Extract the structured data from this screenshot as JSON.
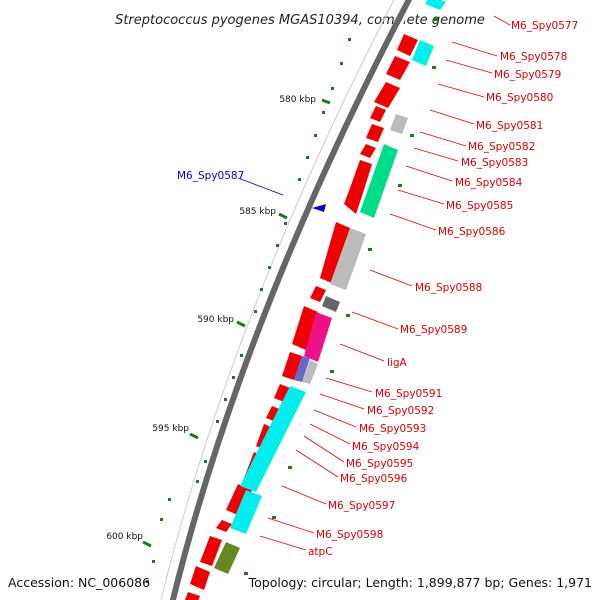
{
  "title": "Streptococcus pyogenes MGAS10394, complete genome",
  "footer": {
    "accession": "Accession: NC_006086",
    "topology": "Topology: circular; Length: 1,899,877 bp; Genes: 1,971"
  },
  "colors": {
    "backbone": "#999999",
    "forward_gene": "#ee0000",
    "annotation_red": "#ee0000",
    "annotation_blue": "#0000cc",
    "tick_green": "#227722",
    "cog_cyan": "#00eeee",
    "cog_green": "#00dd88",
    "cog_lightgray": "#bbbbbb",
    "cog_darkgray": "#666666",
    "cog_magenta": "#ee1188",
    "cog_purple": "#6666cc",
    "cog_olive": "#668822"
  },
  "scale_labels": [
    "580 kbp",
    "585 kbp",
    "590 kbp",
    "595 kbp",
    "600 kbp"
  ],
  "gene_labels": [
    {
      "text": "M6_Spy0577",
      "color": "red"
    },
    {
      "text": "M6_Spy0578",
      "color": "red"
    },
    {
      "text": "M6_Spy0579",
      "color": "red"
    },
    {
      "text": "M6_Spy0580",
      "color": "red"
    },
    {
      "text": "M6_Spy0581",
      "color": "red"
    },
    {
      "text": "M6_Spy0582",
      "color": "red"
    },
    {
      "text": "M6_Spy0583",
      "color": "red"
    },
    {
      "text": "M6_Spy0584",
      "color": "red"
    },
    {
      "text": "M6_Spy0585",
      "color": "red"
    },
    {
      "text": "M6_Spy0586",
      "color": "red"
    },
    {
      "text": "M6_Spy0587",
      "color": "blue"
    },
    {
      "text": "M6_Spy0588",
      "color": "red"
    },
    {
      "text": "M6_Spy0589",
      "color": "red"
    },
    {
      "text": "ligA",
      "color": "red"
    },
    {
      "text": "M6_Spy0591",
      "color": "red"
    },
    {
      "text": "M6_Spy0592",
      "color": "red"
    },
    {
      "text": "M6_Spy0593",
      "color": "red"
    },
    {
      "text": "M6_Spy0594",
      "color": "red"
    },
    {
      "text": "M6_Spy0595",
      "color": "red"
    },
    {
      "text": "M6_Spy0596",
      "color": "red"
    },
    {
      "text": "M6_Spy0597",
      "color": "red"
    },
    {
      "text": "M6_Spy0598",
      "color": "red"
    },
    {
      "text": "atpC",
      "color": "red"
    }
  ]
}
